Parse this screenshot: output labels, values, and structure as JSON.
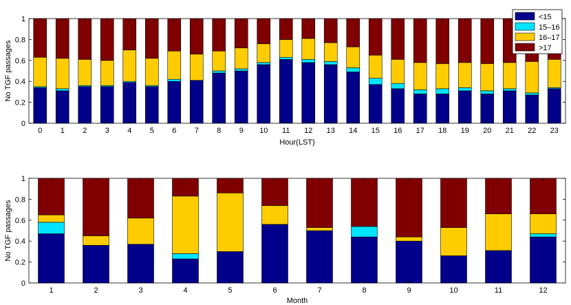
{
  "chart_data": [
    {
      "type": "bar",
      "stacked": true,
      "xlabel": "Hour(LST)",
      "ylabel": "No TGF passages",
      "ylim": [
        0,
        1
      ],
      "yticks": [
        "0",
        "0.2",
        "0.4",
        "0.6",
        "0.8",
        "1"
      ],
      "categories": [
        "0",
        "1",
        "2",
        "3",
        "4",
        "5",
        "6",
        "7",
        "8",
        "9",
        "10",
        "11",
        "12",
        "13",
        "14",
        "15",
        "16",
        "17",
        "18",
        "19",
        "20",
        "21",
        "22",
        "23"
      ],
      "legend_position": "top-right",
      "series": [
        {
          "name": "<15",
          "color": "#00008b",
          "values": [
            0.34,
            0.31,
            0.35,
            0.35,
            0.39,
            0.35,
            0.4,
            0.41,
            0.48,
            0.5,
            0.56,
            0.61,
            0.58,
            0.56,
            0.49,
            0.37,
            0.33,
            0.28,
            0.28,
            0.31,
            0.28,
            0.31,
            0.27,
            0.33
          ]
        },
        {
          "name": "15–16",
          "color": "#00e5ff",
          "values": [
            0.01,
            0.02,
            0.01,
            0.01,
            0.01,
            0.01,
            0.02,
            0.0,
            0.02,
            0.02,
            0.02,
            0.02,
            0.03,
            0.03,
            0.04,
            0.06,
            0.05,
            0.04,
            0.05,
            0.03,
            0.03,
            0.02,
            0.02,
            0.01
          ]
        },
        {
          "name": "16–17",
          "color": "#ffcc00",
          "values": [
            0.28,
            0.29,
            0.25,
            0.24,
            0.3,
            0.26,
            0.27,
            0.25,
            0.19,
            0.2,
            0.18,
            0.17,
            0.2,
            0.18,
            0.2,
            0.22,
            0.23,
            0.26,
            0.24,
            0.24,
            0.26,
            0.25,
            0.3,
            0.27
          ]
        },
        {
          "name": ">17",
          "color": "#800000",
          "values": [
            0.37,
            0.38,
            0.39,
            0.4,
            0.3,
            0.38,
            0.31,
            0.34,
            0.31,
            0.28,
            0.24,
            0.2,
            0.19,
            0.23,
            0.27,
            0.35,
            0.39,
            0.42,
            0.43,
            0.42,
            0.43,
            0.42,
            0.41,
            0.39
          ]
        }
      ]
    },
    {
      "type": "bar",
      "stacked": true,
      "xlabel": "Month",
      "ylabel": "No TGF passages",
      "ylim": [
        0,
        1
      ],
      "yticks": [
        "0",
        "0.2",
        "0.4",
        "0.6",
        "0.8",
        "1"
      ],
      "categories": [
        "1",
        "2",
        "3",
        "4",
        "5",
        "6",
        "7",
        "8",
        "9",
        "10",
        "11",
        "12"
      ],
      "series": [
        {
          "name": "<15",
          "color": "#00008b",
          "values": [
            0.47,
            0.36,
            0.37,
            0.23,
            0.3,
            0.56,
            0.5,
            0.44,
            0.4,
            0.26,
            0.31,
            0.44
          ]
        },
        {
          "name": "15–16",
          "color": "#00e5ff",
          "values": [
            0.11,
            0.0,
            0.0,
            0.05,
            0.0,
            0.0,
            0.0,
            0.1,
            0.0,
            0.0,
            0.0,
            0.03
          ]
        },
        {
          "name": "16–17",
          "color": "#ffcc00",
          "values": [
            0.07,
            0.09,
            0.25,
            0.55,
            0.56,
            0.18,
            0.03,
            0.0,
            0.04,
            0.27,
            0.35,
            0.19
          ]
        },
        {
          "name": ">17",
          "color": "#800000",
          "values": [
            0.35,
            0.55,
            0.38,
            0.17,
            0.14,
            0.26,
            0.47,
            0.46,
            0.56,
            0.47,
            0.34,
            0.34
          ]
        }
      ]
    }
  ]
}
